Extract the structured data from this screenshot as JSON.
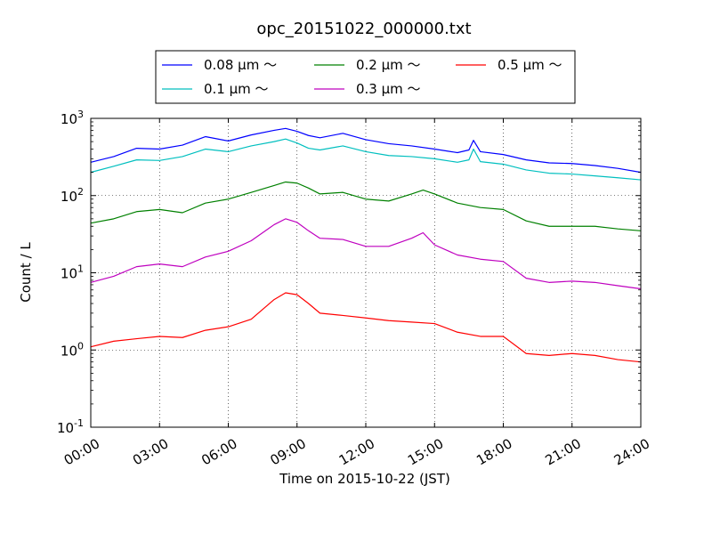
{
  "chart_data": {
    "type": "line",
    "title": "opc_20151022_000000.txt",
    "xlabel": "Time on 2015-10-22 (JST)",
    "ylabel": "Count / L",
    "yscale": "log",
    "xlim": [
      0,
      24
    ],
    "ylim": [
      0.1,
      1000
    ],
    "grid": true,
    "legend_position": "top-center",
    "x_ticks": [
      {
        "value": 0,
        "label": "00:00"
      },
      {
        "value": 3,
        "label": "03:00"
      },
      {
        "value": 6,
        "label": "06:00"
      },
      {
        "value": 9,
        "label": "09:00"
      },
      {
        "value": 12,
        "label": "12:00"
      },
      {
        "value": 15,
        "label": "15:00"
      },
      {
        "value": 18,
        "label": "18:00"
      },
      {
        "value": 21,
        "label": "21:00"
      },
      {
        "value": 24,
        "label": "24:00"
      }
    ],
    "y_ticks": [
      {
        "value": 0.1,
        "base": "10",
        "exp": "-1"
      },
      {
        "value": 1,
        "base": "10",
        "exp": "0"
      },
      {
        "value": 10,
        "base": "10",
        "exp": "1"
      },
      {
        "value": 100,
        "base": "10",
        "exp": "2"
      },
      {
        "value": 1000,
        "base": "10",
        "exp": "3"
      }
    ],
    "series": [
      {
        "name": "0.08 μm ～",
        "color": "#0000ff",
        "x": [
          0,
          1,
          2,
          3,
          4,
          5,
          6,
          7,
          8,
          8.5,
          9,
          9.5,
          10,
          11,
          12,
          13,
          14,
          15,
          16,
          16.5,
          16.7,
          17,
          18,
          19,
          20,
          21,
          22,
          23,
          24
        ],
        "y": [
          270,
          320,
          410,
          400,
          450,
          580,
          510,
          610,
          700,
          740,
          680,
          600,
          560,
          640,
          530,
          470,
          440,
          400,
          360,
          390,
          520,
          370,
          340,
          290,
          265,
          260,
          245,
          225,
          200
        ]
      },
      {
        "name": "0.1 μm ～",
        "color": "#00bfbf",
        "x": [
          0,
          1,
          2,
          3,
          4,
          5,
          6,
          7,
          8,
          8.5,
          9,
          9.5,
          10,
          11,
          12,
          13,
          14,
          15,
          16,
          16.5,
          16.7,
          17,
          18,
          19,
          20,
          21,
          22,
          23,
          24
        ],
        "y": [
          200,
          240,
          290,
          285,
          320,
          400,
          370,
          440,
          500,
          540,
          480,
          410,
          390,
          440,
          370,
          330,
          320,
          300,
          270,
          290,
          400,
          275,
          255,
          215,
          195,
          190,
          180,
          170,
          160
        ]
      },
      {
        "name": "0.2 μm ～",
        "color": "#008000",
        "x": [
          0,
          1,
          2,
          3,
          4,
          5,
          6,
          7,
          8,
          8.5,
          9,
          9.5,
          10,
          11,
          12,
          13,
          14,
          14.5,
          15,
          16,
          17,
          18,
          19,
          20,
          21,
          22,
          23,
          24
        ],
        "y": [
          44,
          50,
          62,
          66,
          60,
          80,
          90,
          110,
          135,
          150,
          145,
          125,
          105,
          110,
          90,
          85,
          105,
          118,
          105,
          80,
          70,
          66,
          47,
          40,
          40,
          40,
          37,
          35
        ]
      },
      {
        "name": "0.3 μm ～",
        "color": "#bf00bf",
        "x": [
          0,
          1,
          2,
          3,
          4,
          5,
          6,
          7,
          8,
          8.5,
          9,
          9.5,
          10,
          11,
          12,
          13,
          14,
          14.5,
          15,
          16,
          17,
          18,
          19,
          20,
          21,
          22,
          23,
          24
        ],
        "y": [
          7.5,
          9,
          12,
          13,
          12,
          16,
          19,
          26,
          42,
          50,
          45,
          35,
          28,
          27,
          22,
          22,
          28,
          33,
          23,
          17,
          15,
          14,
          8.5,
          7.5,
          7.8,
          7.5,
          6.8,
          6.2
        ]
      },
      {
        "name": "0.5 μm ～",
        "color": "#ff0000",
        "x": [
          0,
          1,
          2,
          3,
          4,
          5,
          6,
          7,
          8,
          8.5,
          9,
          9.5,
          10,
          11,
          12,
          13,
          14,
          15,
          16,
          17,
          18,
          19,
          20,
          21,
          22,
          23,
          24
        ],
        "y": [
          1.1,
          1.3,
          1.4,
          1.5,
          1.45,
          1.8,
          2.0,
          2.5,
          4.5,
          5.5,
          5.2,
          4.0,
          3.0,
          2.8,
          2.6,
          2.4,
          2.3,
          2.2,
          1.7,
          1.5,
          1.5,
          0.9,
          0.85,
          0.9,
          0.85,
          0.75,
          0.7
        ]
      }
    ]
  }
}
